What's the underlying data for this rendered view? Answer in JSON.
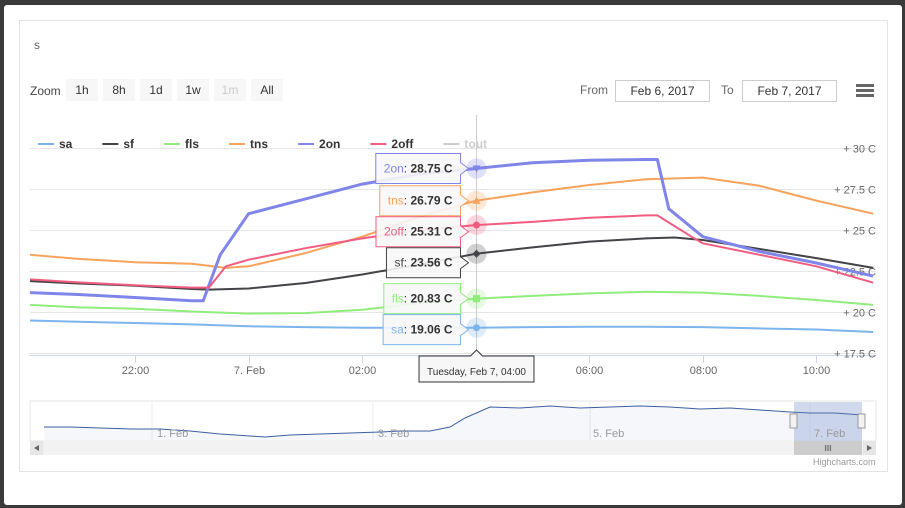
{
  "title": "s",
  "toolbar": {
    "zoom_label": "Zoom",
    "buttons": [
      "1h",
      "8h",
      "1d",
      "1w",
      "1m",
      "All"
    ],
    "from_label": "From",
    "from_value": "Feb 6, 2017",
    "to_label": "To",
    "to_value": "Feb 7, 2017",
    "menu_icon": "hamburger-menu-icon"
  },
  "credit": "Highcharts.com",
  "tooltip_header": "Tuesday, Feb 7, 04:00",
  "navigator": {
    "labels": [
      "1. Feb",
      "3. Feb",
      "5. Feb",
      "7. Feb"
    ],
    "scroll_grip": "III"
  },
  "chart_data": {
    "type": "line",
    "x_unit": "hours",
    "x_ticks": [
      {
        "label": "22:00",
        "x": 22
      },
      {
        "label": "7. Feb",
        "x": 24
      },
      {
        "label": "02:00",
        "x": 26
      },
      {
        "label": "06:00",
        "x": 30
      },
      {
        "label": "08:00",
        "x": 32
      },
      {
        "label": "10:00",
        "x": 34
      }
    ],
    "y_ticks": [
      {
        "label": "+ 30 C",
        "value": 30
      },
      {
        "label": "+ 27.5 C",
        "value": 27.5
      },
      {
        "label": "+ 25 C",
        "value": 25
      },
      {
        "label": "+ 22.5 C",
        "value": 22.5
      },
      {
        "label": "+ 20 C",
        "value": 20
      },
      {
        "label": "+ 17.5 C",
        "value": 17.5
      }
    ],
    "xlim": [
      20.15,
      35.05
    ],
    "ylim": [
      17.4,
      30.0
    ],
    "grid": true,
    "legend_position": "top-left",
    "crosshair_x": 28,
    "series": [
      {
        "name": "sa",
        "color": "#7cb5ec",
        "visible": true,
        "tooltip_value": "19.06 C",
        "marker": "circle",
        "points": [
          [
            20.15,
            19.5
          ],
          [
            21,
            19.42
          ],
          [
            22,
            19.35
          ],
          [
            23,
            19.26
          ],
          [
            24,
            19.15
          ],
          [
            25,
            19.1
          ],
          [
            26,
            19.06
          ],
          [
            27,
            19.06
          ],
          [
            28,
            19.06
          ],
          [
            29,
            19.1
          ],
          [
            30,
            19.12
          ],
          [
            31,
            19.12
          ],
          [
            32,
            19.1
          ],
          [
            33,
            19.02
          ],
          [
            34,
            18.95
          ],
          [
            35,
            18.8
          ]
        ]
      },
      {
        "name": "sf",
        "color": "#434348",
        "visible": true,
        "tooltip_value": "23.56 C",
        "marker": "diamond",
        "points": [
          [
            20.15,
            21.9
          ],
          [
            21,
            21.75
          ],
          [
            22,
            21.62
          ],
          [
            23,
            21.42
          ],
          [
            23.3,
            21.38
          ],
          [
            24,
            21.45
          ],
          [
            25,
            21.78
          ],
          [
            26,
            22.3
          ],
          [
            27,
            22.9
          ],
          [
            28,
            23.56
          ],
          [
            29,
            23.95
          ],
          [
            30,
            24.3
          ],
          [
            31,
            24.5
          ],
          [
            31.5,
            24.55
          ],
          [
            32,
            24.4
          ],
          [
            33,
            23.85
          ],
          [
            34,
            23.3
          ],
          [
            35,
            22.7
          ]
        ]
      },
      {
        "name": "fls",
        "color": "#90ed7d",
        "visible": true,
        "tooltip_value": "20.83 C",
        "marker": "square",
        "points": [
          [
            20.15,
            20.45
          ],
          [
            21,
            20.3
          ],
          [
            22,
            20.22
          ],
          [
            23,
            20.05
          ],
          [
            24,
            19.92
          ],
          [
            25,
            19.95
          ],
          [
            26,
            20.15
          ],
          [
            27,
            20.55
          ],
          [
            28,
            20.83
          ],
          [
            29,
            21.0
          ],
          [
            30,
            21.15
          ],
          [
            31,
            21.25
          ],
          [
            32,
            21.2
          ],
          [
            33,
            21.0
          ],
          [
            34,
            20.75
          ],
          [
            35,
            20.45
          ]
        ]
      },
      {
        "name": "tns",
        "color": "#f7a35c",
        "visible": true,
        "tooltip_value": "26.79 C",
        "marker": "triangle",
        "points": [
          [
            20.15,
            23.5
          ],
          [
            21,
            23.25
          ],
          [
            22,
            23.05
          ],
          [
            23,
            22.95
          ],
          [
            23.6,
            22.7
          ],
          [
            24,
            22.8
          ],
          [
            25,
            23.6
          ],
          [
            26,
            24.6
          ],
          [
            27,
            25.8
          ],
          [
            28,
            26.79
          ],
          [
            29,
            27.3
          ],
          [
            30,
            27.75
          ],
          [
            31,
            28.1
          ],
          [
            32,
            28.2
          ],
          [
            33,
            27.7
          ],
          [
            34,
            26.8
          ],
          [
            35,
            26.0
          ]
        ]
      },
      {
        "name": "2on",
        "color": "#8085e9",
        "visible": true,
        "tooltip_value": "28.75 C",
        "marker": "triangle-down",
        "points": [
          [
            20.15,
            21.2
          ],
          [
            21,
            21.08
          ],
          [
            22,
            20.9
          ],
          [
            23,
            20.7
          ],
          [
            23.2,
            20.7
          ],
          [
            23.5,
            23.5
          ],
          [
            24,
            26.0
          ],
          [
            25,
            26.9
          ],
          [
            26,
            27.8
          ],
          [
            27,
            28.4
          ],
          [
            28,
            28.75
          ],
          [
            29,
            29.1
          ],
          [
            30,
            29.25
          ],
          [
            31,
            29.3
          ],
          [
            31.2,
            29.3
          ],
          [
            31.4,
            26.3
          ],
          [
            32,
            24.6
          ],
          [
            33,
            23.7
          ],
          [
            34,
            23.0
          ],
          [
            35,
            22.2
          ]
        ]
      },
      {
        "name": "2off",
        "color": "#f15c80",
        "visible": true,
        "tooltip_value": "25.31 C",
        "marker": "circle",
        "points": [
          [
            20.15,
            22.0
          ],
          [
            21,
            21.82
          ],
          [
            22,
            21.65
          ],
          [
            23,
            21.5
          ],
          [
            23.3,
            21.5
          ],
          [
            23.6,
            22.8
          ],
          [
            24,
            23.2
          ],
          [
            25,
            23.9
          ],
          [
            26,
            24.5
          ],
          [
            27,
            25.0
          ],
          [
            28,
            25.31
          ],
          [
            29,
            25.5
          ],
          [
            30,
            25.75
          ],
          [
            31,
            25.9
          ],
          [
            31.2,
            25.9
          ],
          [
            31.8,
            24.6
          ],
          [
            32,
            24.2
          ],
          [
            33,
            23.5
          ],
          [
            34,
            22.8
          ],
          [
            35,
            21.8
          ]
        ]
      },
      {
        "name": "tout",
        "color": "#e4d354",
        "visible": false,
        "tooltip_value": "",
        "marker": "none",
        "points": []
      }
    ]
  }
}
